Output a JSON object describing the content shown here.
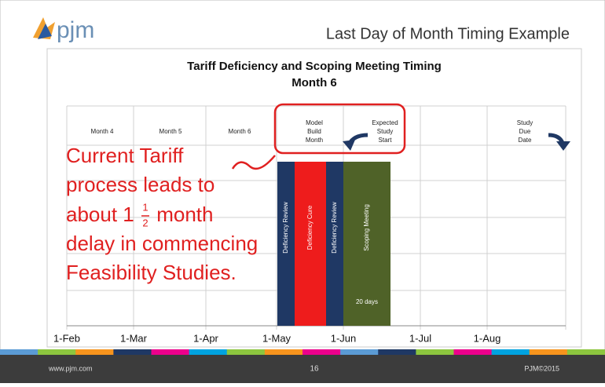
{
  "header": {
    "logo": "pjm",
    "title": "Last Day of Month Timing Example"
  },
  "chart": {
    "title": "Tariff Deficiency and Scoping Meeting Timing",
    "subtitle": "Month 6",
    "row_labels": [
      [
        "Month 4"
      ],
      [
        "Month 5"
      ],
      [
        "Month 6"
      ],
      [
        "Model",
        "Build",
        "Month"
      ],
      [
        "Expected",
        "Study",
        "Start"
      ],
      [
        "Study",
        "Due",
        "Date"
      ]
    ],
    "axis_labels": [
      "1-Feb",
      "1-Mar",
      "1-Apr",
      "1-May",
      "1-Jun",
      "1-Jul",
      "1-Aug"
    ],
    "bars": [
      "Deficiency Review",
      "Deficiency Cure",
      "Deficiency Review",
      "Scoping Meeting"
    ],
    "bar_note": "20 days"
  },
  "callout": {
    "lines": [
      "Current Tariff",
      "process leads to",
      "delay in commencing",
      "Feasibility Studies."
    ],
    "fraction_line": {
      "before": "about 1",
      "numerator": "1",
      "denominator": "2",
      "after": " month"
    }
  },
  "footer": {
    "site": "www.pjm.com",
    "page": "16",
    "copyright": "PJM©2015"
  }
}
